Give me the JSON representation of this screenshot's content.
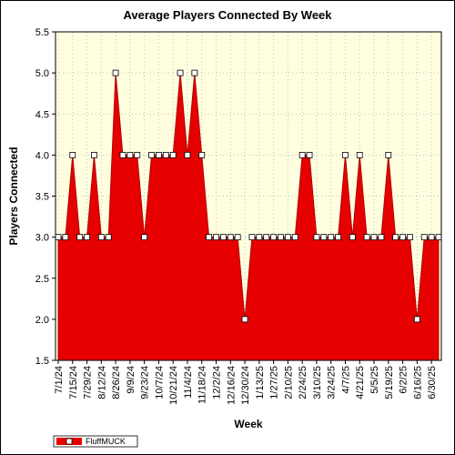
{
  "chart_data": {
    "type": "area",
    "title": "Average Players Connected By Week",
    "xlabel": "Week",
    "ylabel": "Players Connected",
    "ylim": [
      1.5,
      5.5
    ],
    "yticks": [
      "1.5",
      "2.0",
      "2.5",
      "3.0",
      "3.5",
      "4.0",
      "4.5",
      "5.0",
      "5.5"
    ],
    "grid": true,
    "legend_position": "bottom-left",
    "colors": {
      "area": "#e60000",
      "plot_background": "#ffffe0",
      "grid": "#bdbdbd",
      "marker_fill": "#ffffff"
    },
    "x": [
      "7/1/24",
      "7/8/24",
      "7/15/24",
      "7/22/24",
      "7/29/24",
      "8/5/24",
      "8/12/24",
      "8/19/24",
      "8/26/24",
      "9/2/24",
      "9/9/24",
      "9/16/24",
      "9/23/24",
      "9/30/24",
      "10/7/24",
      "10/14/24",
      "10/21/24",
      "10/28/24",
      "11/4/24",
      "11/11/24",
      "11/18/24",
      "11/25/24",
      "12/2/24",
      "12/9/24",
      "12/16/24",
      "12/23/24",
      "12/30/24",
      "1/6/25",
      "1/13/25",
      "1/20/25",
      "1/27/25",
      "2/3/25",
      "2/10/25",
      "2/17/25",
      "2/24/25",
      "3/3/25",
      "3/10/25",
      "3/17/25",
      "3/24/25",
      "3/31/25",
      "4/7/25",
      "4/14/25",
      "4/21/25",
      "4/28/25",
      "5/5/25",
      "5/12/25",
      "5/19/25",
      "5/26/25",
      "6/2/25",
      "6/9/25",
      "6/16/25",
      "6/23/25",
      "6/30/25",
      "7/7/25"
    ],
    "xtick_labels": [
      "7/1/24",
      "7/15/24",
      "7/29/24",
      "8/12/24",
      "8/26/24",
      "9/9/24",
      "9/23/24",
      "10/7/24",
      "10/21/24",
      "11/4/24",
      "11/18/24",
      "12/2/24",
      "12/16/24",
      "12/30/24",
      "1/13/25",
      "1/27/25",
      "2/10/25",
      "2/24/25",
      "3/10/25",
      "3/24/25",
      "4/7/25",
      "4/21/25",
      "5/5/25",
      "5/19/25",
      "6/2/25",
      "6/16/25",
      "6/30/25"
    ],
    "series": [
      {
        "name": "FluffMUCK",
        "values": [
          3,
          3,
          4,
          3,
          3,
          4,
          3,
          3,
          5,
          4,
          4,
          4,
          3,
          4,
          4,
          4,
          4,
          5,
          4,
          5,
          4,
          3,
          3,
          3,
          3,
          3,
          2,
          3,
          3,
          3,
          3,
          3,
          3,
          3,
          4,
          4,
          3,
          3,
          3,
          3,
          4,
          3,
          4,
          3,
          3,
          3,
          4,
          3,
          3,
          3,
          2,
          3,
          3,
          3
        ]
      }
    ]
  }
}
